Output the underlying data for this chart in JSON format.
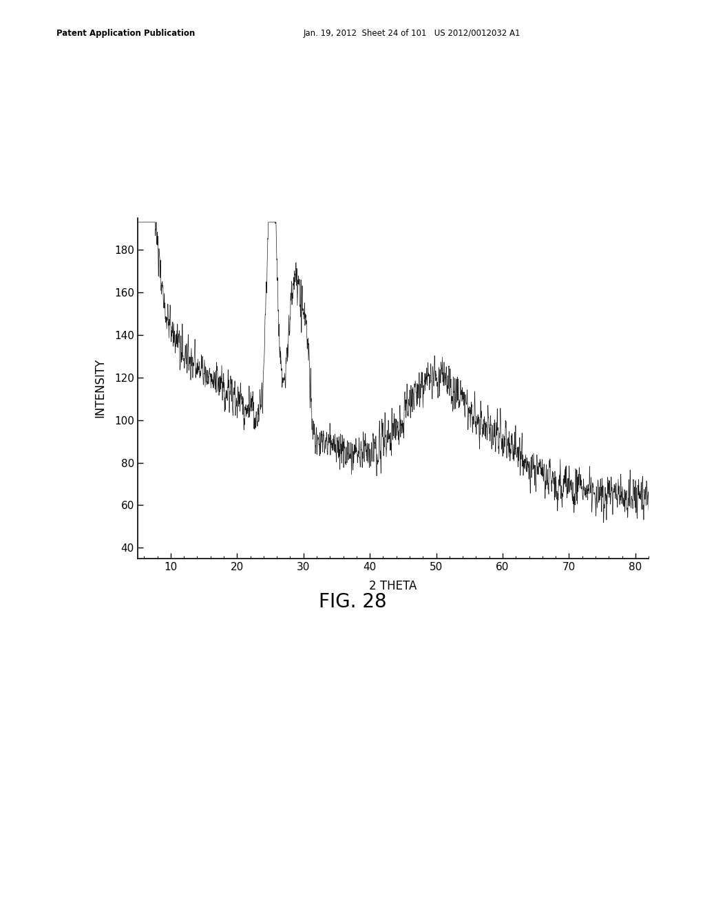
{
  "title_header": "Patent Application Publication    Jan. 19, 2012  Sheet 24 of 101   US 2012/0012032 A1",
  "fig_label": "FIG. 28",
  "xlabel": "2 THETA",
  "ylabel": "INTENSITY",
  "xlim": [
    5,
    82
  ],
  "ylim": [
    35,
    195
  ],
  "xticks": [
    10,
    20,
    30,
    40,
    50,
    60,
    70,
    80
  ],
  "yticks": [
    40,
    60,
    80,
    100,
    120,
    140,
    160,
    180
  ],
  "background_color": "#ffffff",
  "line_color": "#1a1a1a",
  "seed": 12345
}
